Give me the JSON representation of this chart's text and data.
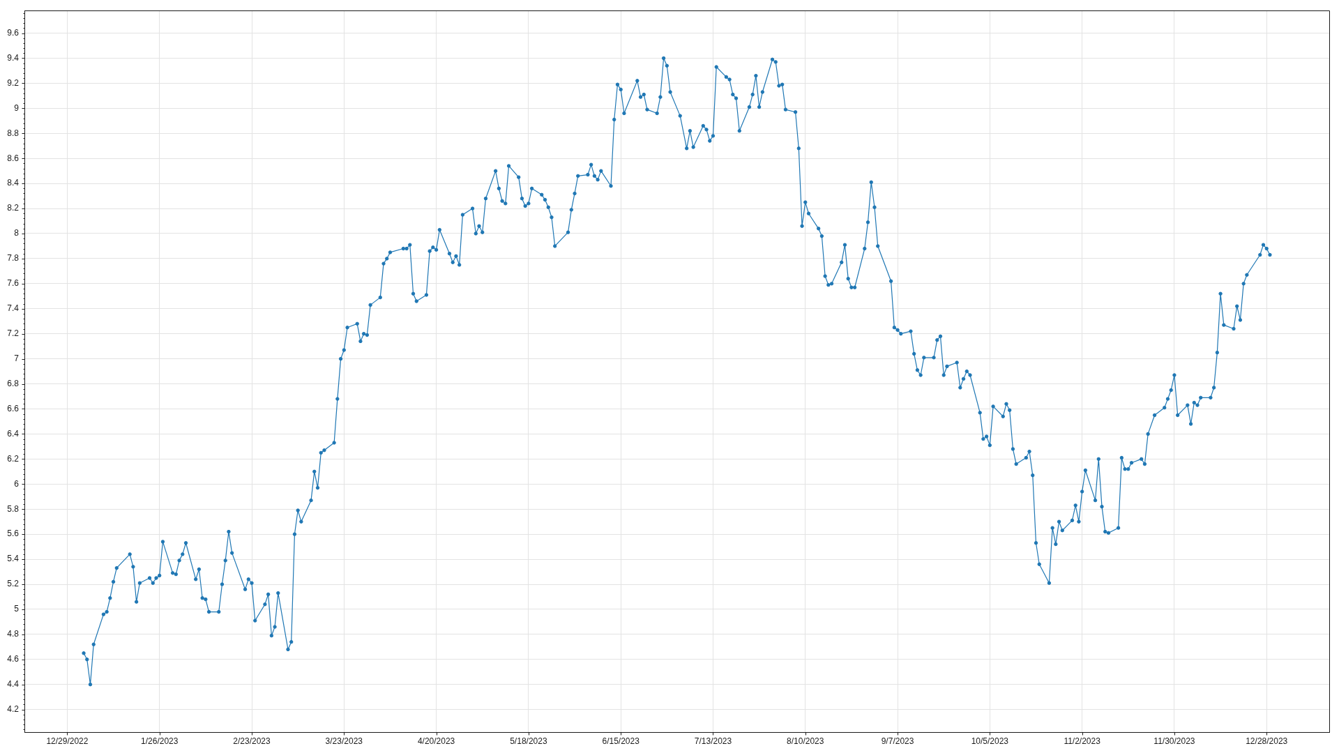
{
  "chart_data": {
    "type": "line",
    "x": [
      "2023-01-03",
      "2023-01-04",
      "2023-01-05",
      "2023-01-06",
      "2023-01-09",
      "2023-01-10",
      "2023-01-11",
      "2023-01-12",
      "2023-01-13",
      "2023-01-17",
      "2023-01-18",
      "2023-01-19",
      "2023-01-20",
      "2023-01-23",
      "2023-01-24",
      "2023-01-25",
      "2023-01-26",
      "2023-01-27",
      "2023-01-30",
      "2023-01-31",
      "2023-02-01",
      "2023-02-02",
      "2023-02-03",
      "2023-02-06",
      "2023-02-07",
      "2023-02-08",
      "2023-02-09",
      "2023-02-10",
      "2023-02-13",
      "2023-02-14",
      "2023-02-15",
      "2023-02-16",
      "2023-02-17",
      "2023-02-21",
      "2023-02-22",
      "2023-02-23",
      "2023-02-24",
      "2023-02-27",
      "2023-02-28",
      "2023-03-01",
      "2023-03-02",
      "2023-03-03",
      "2023-03-06",
      "2023-03-07",
      "2023-03-08",
      "2023-03-09",
      "2023-03-10",
      "2023-03-13",
      "2023-03-14",
      "2023-03-15",
      "2023-03-16",
      "2023-03-17",
      "2023-03-20",
      "2023-03-21",
      "2023-03-22",
      "2023-03-23",
      "2023-03-24",
      "2023-03-27",
      "2023-03-28",
      "2023-03-29",
      "2023-03-30",
      "2023-03-31",
      "2023-04-03",
      "2023-04-04",
      "2023-04-05",
      "2023-04-06",
      "2023-04-10",
      "2023-04-11",
      "2023-04-12",
      "2023-04-13",
      "2023-04-14",
      "2023-04-17",
      "2023-04-18",
      "2023-04-19",
      "2023-04-20",
      "2023-04-21",
      "2023-04-24",
      "2023-04-25",
      "2023-04-26",
      "2023-04-27",
      "2023-04-28",
      "2023-05-01",
      "2023-05-02",
      "2023-05-03",
      "2023-05-04",
      "2023-05-05",
      "2023-05-08",
      "2023-05-09",
      "2023-05-10",
      "2023-05-11",
      "2023-05-12",
      "2023-05-15",
      "2023-05-16",
      "2023-05-17",
      "2023-05-18",
      "2023-05-19",
      "2023-05-22",
      "2023-05-23",
      "2023-05-24",
      "2023-05-25",
      "2023-05-26",
      "2023-05-30",
      "2023-05-31",
      "2023-06-01",
      "2023-06-02",
      "2023-06-05",
      "2023-06-06",
      "2023-06-07",
      "2023-06-08",
      "2023-06-09",
      "2023-06-12",
      "2023-06-13",
      "2023-06-14",
      "2023-06-15",
      "2023-06-16",
      "2023-06-20",
      "2023-06-21",
      "2023-06-22",
      "2023-06-23",
      "2023-06-26",
      "2023-06-27",
      "2023-06-28",
      "2023-06-29",
      "2023-06-30",
      "2023-07-03",
      "2023-07-05",
      "2023-07-06",
      "2023-07-07",
      "2023-07-10",
      "2023-07-11",
      "2023-07-12",
      "2023-07-13",
      "2023-07-14",
      "2023-07-17",
      "2023-07-18",
      "2023-07-19",
      "2023-07-20",
      "2023-07-21",
      "2023-07-24",
      "2023-07-25",
      "2023-07-26",
      "2023-07-27",
      "2023-07-28",
      "2023-07-31",
      "2023-08-01",
      "2023-08-02",
      "2023-08-03",
      "2023-08-04",
      "2023-08-07",
      "2023-08-08",
      "2023-08-09",
      "2023-08-10",
      "2023-08-11",
      "2023-08-14",
      "2023-08-15",
      "2023-08-16",
      "2023-08-17",
      "2023-08-18",
      "2023-08-21",
      "2023-08-22",
      "2023-08-23",
      "2023-08-24",
      "2023-08-25",
      "2023-08-28",
      "2023-08-29",
      "2023-08-30",
      "2023-08-31",
      "2023-09-01",
      "2023-09-05",
      "2023-09-06",
      "2023-09-07",
      "2023-09-08",
      "2023-09-11",
      "2023-09-12",
      "2023-09-13",
      "2023-09-14",
      "2023-09-15",
      "2023-09-18",
      "2023-09-19",
      "2023-09-20",
      "2023-09-21",
      "2023-09-22",
      "2023-09-25",
      "2023-09-26",
      "2023-09-27",
      "2023-09-28",
      "2023-09-29",
      "2023-10-02",
      "2023-10-03",
      "2023-10-04",
      "2023-10-05",
      "2023-10-06",
      "2023-10-09",
      "2023-10-10",
      "2023-10-11",
      "2023-10-12",
      "2023-10-13",
      "2023-10-16",
      "2023-10-17",
      "2023-10-18",
      "2023-10-19",
      "2023-10-20",
      "2023-10-23",
      "2023-10-24",
      "2023-10-25",
      "2023-10-26",
      "2023-10-27",
      "2023-10-30",
      "2023-10-31",
      "2023-11-01",
      "2023-11-02",
      "2023-11-03",
      "2023-11-06",
      "2023-11-07",
      "2023-11-08",
      "2023-11-09",
      "2023-11-10",
      "2023-11-13",
      "2023-11-14",
      "2023-11-15",
      "2023-11-16",
      "2023-11-17",
      "2023-11-20",
      "2023-11-21",
      "2023-11-22",
      "2023-11-24",
      "2023-11-27",
      "2023-11-28",
      "2023-11-29",
      "2023-11-30",
      "2023-12-01",
      "2023-12-04",
      "2023-12-05",
      "2023-12-06",
      "2023-12-07",
      "2023-12-08",
      "2023-12-11",
      "2023-12-12",
      "2023-12-13",
      "2023-12-14",
      "2023-12-15",
      "2023-12-18",
      "2023-12-19",
      "2023-12-20",
      "2023-12-21",
      "2023-12-22",
      "2023-12-26",
      "2023-12-27",
      "2023-12-28",
      "2023-12-29"
    ],
    "series": [
      {
        "color": "#1f77b4",
        "values": [
          4.65,
          4.6,
          4.4,
          4.72,
          4.96,
          4.98,
          5.09,
          5.22,
          5.33,
          5.44,
          5.34,
          5.06,
          5.21,
          5.25,
          5.21,
          5.25,
          5.27,
          5.54,
          5.29,
          5.28,
          5.39,
          5.44,
          5.53,
          5.24,
          5.32,
          5.09,
          5.08,
          4.98,
          4.98,
          5.2,
          5.39,
          5.62,
          5.45,
          5.16,
          5.24,
          5.21,
          4.91,
          5.04,
          5.12,
          4.79,
          4.86,
          5.13,
          4.68,
          4.74,
          5.6,
          5.79,
          5.7,
          5.87,
          6.1,
          5.97,
          6.25,
          6.27,
          6.33,
          6.68,
          7.0,
          7.07,
          7.25,
          7.28,
          7.14,
          7.2,
          7.19,
          7.43,
          7.49,
          7.76,
          7.8,
          7.85,
          7.88,
          7.88,
          7.91,
          7.52,
          7.46,
          7.51,
          7.86,
          7.89,
          7.87,
          8.03,
          7.84,
          7.77,
          7.82,
          7.75,
          8.15,
          8.2,
          8.0,
          8.06,
          8.01,
          8.28,
          8.5,
          8.36,
          8.26,
          8.24,
          8.54,
          8.45,
          8.28,
          8.22,
          8.24,
          8.36,
          8.31,
          8.27,
          8.21,
          8.13,
          7.9,
          8.01,
          8.19,
          8.32,
          8.46,
          8.47,
          8.55,
          8.46,
          8.43,
          8.5,
          8.38,
          8.91,
          9.19,
          9.15,
          8.96,
          9.22,
          9.09,
          9.11,
          8.99,
          8.96,
          9.09,
          9.4,
          9.34,
          9.13,
          8.94,
          8.68,
          8.82,
          8.69,
          8.86,
          8.83,
          8.74,
          8.78,
          9.33,
          9.25,
          9.23,
          9.11,
          9.08,
          8.82,
          9.01,
          9.11,
          9.26,
          9.01,
          9.13,
          9.39,
          9.37,
          9.18,
          9.19,
          8.99,
          8.97,
          8.68,
          8.06,
          8.25,
          8.16,
          8.04,
          7.98,
          7.66,
          7.59,
          7.6,
          7.77,
          7.91,
          7.64,
          7.57,
          7.57,
          7.88,
          8.09,
          8.41,
          8.21,
          7.9,
          7.62,
          7.25,
          7.23,
          7.2,
          7.22,
          7.04,
          6.91,
          6.87,
          7.01,
          7.01,
          7.15,
          7.18,
          6.87,
          6.94,
          6.97,
          6.77,
          6.84,
          6.9,
          6.87,
          6.57,
          6.36,
          6.38,
          6.31,
          6.62,
          6.54,
          6.64,
          6.59,
          6.28,
          6.16,
          6.21,
          6.26,
          6.07,
          5.53,
          5.36,
          5.21,
          5.65,
          5.52,
          5.7,
          5.63,
          5.71,
          5.83,
          5.7,
          5.94,
          6.11,
          5.87,
          6.2,
          5.82,
          5.62,
          5.61,
          5.65,
          6.21,
          6.12,
          6.12,
          6.17,
          6.2,
          6.16,
          6.4,
          6.55,
          6.61,
          6.68,
          6.75,
          6.87,
          6.55,
          6.63,
          6.48,
          6.65,
          6.63,
          6.69,
          6.69,
          6.77,
          7.05,
          7.52,
          7.27,
          7.24,
          7.42,
          7.31,
          7.6,
          7.67,
          7.83,
          7.91,
          7.88,
          7.83
        ]
      }
    ],
    "xlim": [
      "2022-12-16",
      "2024-01-16"
    ],
    "xticks": [
      {
        "value": "2022-12-29",
        "label": "12/29/2022"
      },
      {
        "value": "2023-01-26",
        "label": "1/26/2023"
      },
      {
        "value": "2023-02-23",
        "label": "2/23/2023"
      },
      {
        "value": "2023-03-23",
        "label": "3/23/2023"
      },
      {
        "value": "2023-04-20",
        "label": "4/20/2023"
      },
      {
        "value": "2023-05-18",
        "label": "5/18/2023"
      },
      {
        "value": "2023-06-15",
        "label": "6/15/2023"
      },
      {
        "value": "2023-07-13",
        "label": "7/13/2023"
      },
      {
        "value": "2023-08-10",
        "label": "8/10/2023"
      },
      {
        "value": "2023-09-07",
        "label": "9/7/2023"
      },
      {
        "value": "2023-10-05",
        "label": "10/5/2023"
      },
      {
        "value": "2023-11-02",
        "label": "11/2/2023"
      },
      {
        "value": "2023-11-30",
        "label": "11/30/2023"
      },
      {
        "value": "2023-12-28",
        "label": "12/28/2023"
      }
    ],
    "ylim": [
      4.02,
      9.78
    ],
    "yticks": [
      {
        "value": 4.04,
        "label": null
      },
      {
        "value": 4.08,
        "label": null
      },
      {
        "value": 4.12,
        "label": null
      },
      {
        "value": 4.16,
        "label": null
      },
      4.2,
      {
        "value": 4.24,
        "label": null
      },
      {
        "value": 4.28,
        "label": null
      },
      {
        "value": 4.32,
        "label": null
      },
      {
        "value": 4.36,
        "label": null
      },
      4.4,
      {
        "value": 4.44,
        "label": null
      },
      {
        "value": 4.48,
        "label": null
      },
      {
        "value": 4.52,
        "label": null
      },
      {
        "value": 4.56,
        "label": null
      },
      4.6,
      {
        "value": 4.64,
        "label": null
      },
      {
        "value": 4.68,
        "label": null
      },
      {
        "value": 4.72,
        "label": null
      },
      {
        "value": 4.76,
        "label": null
      },
      4.8,
      {
        "value": 4.84,
        "label": null
      },
      {
        "value": 4.88,
        "label": null
      },
      {
        "value": 4.92,
        "label": null
      },
      {
        "value": 4.96,
        "label": null
      },
      5,
      {
        "value": 5.04,
        "label": null
      },
      {
        "value": 5.08,
        "label": null
      },
      {
        "value": 5.12,
        "label": null
      },
      {
        "value": 5.16,
        "label": null
      },
      5.2,
      {
        "value": 5.24,
        "label": null
      },
      {
        "value": 5.28,
        "label": null
      },
      {
        "value": 5.32,
        "label": null
      },
      {
        "value": 5.36,
        "label": null
      },
      5.4,
      {
        "value": 5.44,
        "label": null
      },
      {
        "value": 5.48,
        "label": null
      },
      {
        "value": 5.52,
        "label": null
      },
      {
        "value": 5.56,
        "label": null
      },
      5.6,
      {
        "value": 5.64,
        "label": null
      },
      {
        "value": 5.68,
        "label": null
      },
      {
        "value": 5.72,
        "label": null
      },
      {
        "value": 5.76,
        "label": null
      },
      5.8,
      {
        "value": 5.84,
        "label": null
      },
      {
        "value": 5.88,
        "label": null
      },
      {
        "value": 5.92,
        "label": null
      },
      {
        "value": 5.96,
        "label": null
      },
      6,
      {
        "value": 6.04,
        "label": null
      },
      {
        "value": 6.08,
        "label": null
      },
      {
        "value": 6.12,
        "label": null
      },
      {
        "value": 6.16,
        "label": null
      },
      6.2,
      {
        "value": 6.24,
        "label": null
      },
      {
        "value": 6.28,
        "label": null
      },
      {
        "value": 6.32,
        "label": null
      },
      {
        "value": 6.36,
        "label": null
      },
      6.4,
      {
        "value": 6.44,
        "label": null
      },
      {
        "value": 6.48,
        "label": null
      },
      {
        "value": 6.52,
        "label": null
      },
      {
        "value": 6.56,
        "label": null
      },
      6.6,
      {
        "value": 6.64,
        "label": null
      },
      {
        "value": 6.68,
        "label": null
      },
      {
        "value": 6.72,
        "label": null
      },
      {
        "value": 6.76,
        "label": null
      },
      6.8,
      {
        "value": 6.84,
        "label": null
      },
      {
        "value": 6.88,
        "label": null
      },
      {
        "value": 6.92,
        "label": null
      },
      {
        "value": 6.96,
        "label": null
      },
      7,
      {
        "value": 7.04,
        "label": null
      },
      {
        "value": 7.08,
        "label": null
      },
      {
        "value": 7.12,
        "label": null
      },
      {
        "value": 7.16,
        "label": null
      },
      7.2,
      {
        "value": 7.24,
        "label": null
      },
      {
        "value": 7.28,
        "label": null
      },
      {
        "value": 7.32,
        "label": null
      },
      {
        "value": 7.36,
        "label": null
      },
      7.4,
      {
        "value": 7.44,
        "label": null
      },
      {
        "value": 7.48,
        "label": null
      },
      {
        "value": 7.52,
        "label": null
      },
      {
        "value": 7.56,
        "label": null
      },
      7.6,
      {
        "value": 7.64,
        "label": null
      },
      {
        "value": 7.68,
        "label": null
      },
      {
        "value": 7.72,
        "label": null
      },
      {
        "value": 7.76,
        "label": null
      },
      7.8,
      {
        "value": 7.84,
        "label": null
      },
      {
        "value": 7.88,
        "label": null
      },
      {
        "value": 7.92,
        "label": null
      },
      {
        "value": 7.96,
        "label": null
      },
      8,
      {
        "value": 8.04,
        "label": null
      },
      {
        "value": 8.08,
        "label": null
      },
      {
        "value": 8.12,
        "label": null
      },
      {
        "value": 8.16,
        "label": null
      },
      8.2,
      {
        "value": 8.24,
        "label": null
      },
      {
        "value": 8.28,
        "label": null
      },
      {
        "value": 8.32,
        "label": null
      },
      {
        "value": 8.36,
        "label": null
      },
      8.4,
      {
        "value": 8.44,
        "label": null
      },
      {
        "value": 8.48,
        "label": null
      },
      {
        "value": 8.52,
        "label": null
      },
      {
        "value": 8.56,
        "label": null
      },
      8.6,
      {
        "value": 8.64,
        "label": null
      },
      {
        "value": 8.68,
        "label": null
      },
      {
        "value": 8.72,
        "label": null
      },
      {
        "value": 8.76,
        "label": null
      },
      8.8,
      {
        "value": 8.84,
        "label": null
      },
      {
        "value": 8.88,
        "label": null
      },
      {
        "value": 8.92,
        "label": null
      },
      {
        "value": 8.96,
        "label": null
      },
      9,
      {
        "value": 9.04,
        "label": null
      },
      {
        "value": 9.08,
        "label": null
      },
      {
        "value": 9.12,
        "label": null
      },
      {
        "value": 9.16,
        "label": null
      },
      9.2,
      {
        "value": 9.24,
        "label": null
      },
      {
        "value": 9.28,
        "label": null
      },
      {
        "value": 9.32,
        "label": null
      },
      {
        "value": 9.36,
        "label": null
      },
      9.4,
      {
        "value": 9.44,
        "label": null
      },
      {
        "value": 9.48,
        "label": null
      },
      {
        "value": 9.52,
        "label": null
      },
      {
        "value": 9.56,
        "label": null
      },
      9.6,
      {
        "value": 9.64,
        "label": null
      },
      {
        "value": 9.68,
        "label": null
      },
      {
        "value": 9.72,
        "label": null
      },
      {
        "value": 9.76,
        "label": null
      }
    ],
    "grid": true,
    "marker": "circle",
    "line_style": "solid"
  }
}
